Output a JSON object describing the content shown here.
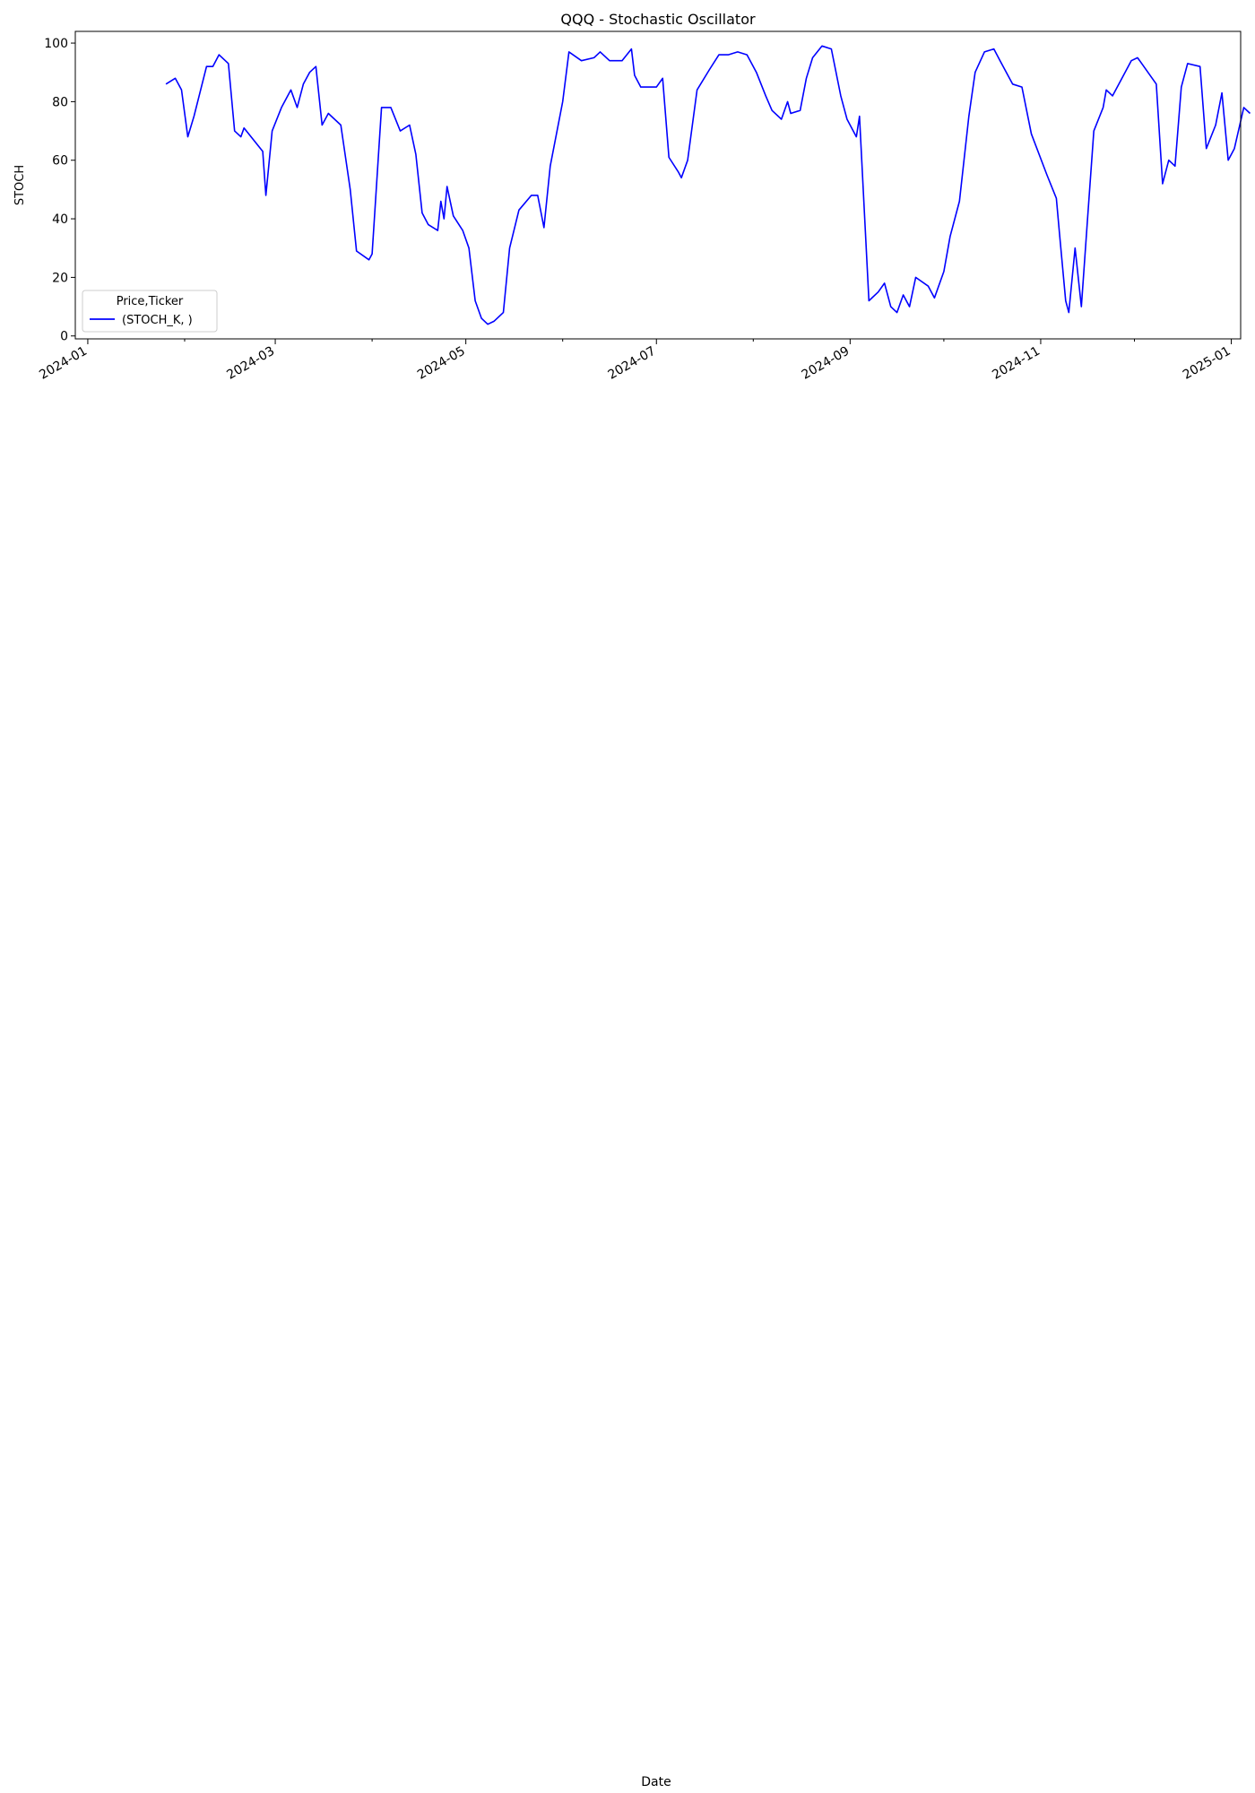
{
  "figure": {
    "xlabel": "Date"
  },
  "x_tick_labels": [
    "2024-01",
    "2024-03",
    "2024-05",
    "2024-07",
    "2024-09",
    "2024-11",
    "2025-01"
  ],
  "colors": {
    "stoch_k": "#0000ff",
    "stoch_d": "#ffa500",
    "cci": "#800080",
    "willr": "#a52a2a",
    "mfi": "#008000",
    "roc": "#008b8b",
    "overbought": "#ff0000",
    "oversold": "#008000"
  },
  "chart_data": [
    {
      "type": "line",
      "title": "QQQ - Stochastic Oscillator",
      "ylabel": "STOCH",
      "ylim": [
        -1,
        104
      ],
      "yticks": [
        0,
        20,
        40,
        60,
        80,
        100
      ],
      "xlim": [
        "2023-12-28",
        "2025-01-04"
      ],
      "legend": {
        "title": "Price,Ticker",
        "placement": "lower-left"
      },
      "series": [
        {
          "name": "(STOCH_K, )",
          "color": "#0000ff",
          "points": [
            [
              "2024-01-26",
              86
            ],
            [
              "2024-01-29",
              88
            ],
            [
              "2024-01-31",
              84
            ],
            [
              "2024-02-02",
              68
            ],
            [
              "2024-02-04",
              75
            ],
            [
              "2024-02-08",
              92
            ],
            [
              "2024-02-10",
              92
            ],
            [
              "2024-02-12",
              96
            ],
            [
              "2024-02-15",
              93
            ],
            [
              "2024-02-17",
              70
            ],
            [
              "2024-02-19",
              68
            ],
            [
              "2024-02-20",
              71
            ],
            [
              "2024-02-26",
              63
            ],
            [
              "2024-02-27",
              48
            ],
            [
              "2024-02-29",
              70
            ],
            [
              "2024-03-03",
              78
            ],
            [
              "2024-03-06",
              84
            ],
            [
              "2024-03-08",
              78
            ],
            [
              "2024-03-10",
              86
            ],
            [
              "2024-03-12",
              90
            ],
            [
              "2024-03-14",
              92
            ],
            [
              "2024-03-16",
              72
            ],
            [
              "2024-03-18",
              76
            ],
            [
              "2024-03-22",
              72
            ],
            [
              "2024-03-25",
              50
            ],
            [
              "2024-03-27",
              29
            ],
            [
              "2024-03-31",
              26
            ],
            [
              "2024-04-01",
              28
            ],
            [
              "2024-04-04",
              78
            ],
            [
              "2024-04-07",
              78
            ],
            [
              "2024-04-10",
              70
            ],
            [
              "2024-04-13",
              72
            ],
            [
              "2024-04-15",
              62
            ],
            [
              "2024-04-17",
              42
            ],
            [
              "2024-04-19",
              38
            ],
            [
              "2024-04-22",
              36
            ],
            [
              "2024-04-23",
              46
            ],
            [
              "2024-04-24",
              40
            ],
            [
              "2024-04-25",
              51
            ],
            [
              "2024-04-27",
              41
            ],
            [
              "2024-04-30",
              36
            ],
            [
              "2024-05-02",
              30
            ],
            [
              "2024-05-04",
              12
            ],
            [
              "2024-05-06",
              6
            ],
            [
              "2024-05-08",
              4
            ],
            [
              "2024-05-10",
              5
            ],
            [
              "2024-05-13",
              8
            ],
            [
              "2024-05-15",
              30
            ],
            [
              "2024-05-18",
              43
            ],
            [
              "2024-05-22",
              48
            ],
            [
              "2024-05-24",
              48
            ],
            [
              "2024-05-26",
              37
            ],
            [
              "2024-05-28",
              58
            ],
            [
              "2024-06-01",
              80
            ],
            [
              "2024-06-03",
              97
            ],
            [
              "2024-06-07",
              94
            ],
            [
              "2024-06-11",
              95
            ],
            [
              "2024-06-13",
              97
            ],
            [
              "2024-06-16",
              94
            ],
            [
              "2024-06-20",
              94
            ],
            [
              "2024-06-23",
              98
            ],
            [
              "2024-06-24",
              89
            ],
            [
              "2024-06-26",
              85
            ],
            [
              "2024-07-01",
              85
            ],
            [
              "2024-07-03",
              88
            ],
            [
              "2024-07-05",
              61
            ],
            [
              "2024-07-08",
              56
            ],
            [
              "2024-07-09",
              54
            ],
            [
              "2024-07-11",
              60
            ],
            [
              "2024-07-14",
              84
            ],
            [
              "2024-07-18",
              91
            ],
            [
              "2024-07-21",
              96
            ],
            [
              "2024-07-24",
              96
            ],
            [
              "2024-07-27",
              97
            ],
            [
              "2024-07-30",
              96
            ],
            [
              "2024-08-02",
              90
            ],
            [
              "2024-08-05",
              82
            ],
            [
              "2024-08-07",
              77
            ],
            [
              "2024-08-10",
              74
            ],
            [
              "2024-08-12",
              80
            ],
            [
              "2024-08-13",
              76
            ],
            [
              "2024-08-16",
              77
            ],
            [
              "2024-08-18",
              88
            ],
            [
              "2024-08-20",
              95
            ],
            [
              "2024-08-23",
              99
            ],
            [
              "2024-08-26",
              98
            ],
            [
              "2024-08-29",
              82
            ],
            [
              "2024-08-31",
              74
            ],
            [
              "2024-09-03",
              68
            ],
            [
              "2024-09-04",
              75
            ],
            [
              "2024-09-07",
              12
            ],
            [
              "2024-09-10",
              15
            ],
            [
              "2024-09-12",
              18
            ],
            [
              "2024-09-14",
              10
            ],
            [
              "2024-09-16",
              8
            ],
            [
              "2024-09-18",
              14
            ],
            [
              "2024-09-20",
              10
            ],
            [
              "2024-09-22",
              20
            ],
            [
              "2024-09-26",
              17
            ],
            [
              "2024-09-28",
              13
            ],
            [
              "2024-10-01",
              22
            ],
            [
              "2024-10-03",
              34
            ],
            [
              "2024-10-06",
              46
            ],
            [
              "2024-10-09",
              75
            ],
            [
              "2024-10-11",
              90
            ],
            [
              "2024-10-14",
              97
            ],
            [
              "2024-10-17",
              98
            ],
            [
              "2024-10-19",
              94
            ],
            [
              "2024-10-23",
              86
            ],
            [
              "2024-10-26",
              85
            ],
            [
              "2024-10-29",
              69
            ],
            [
              "2024-11-03",
              55
            ],
            [
              "2024-11-06",
              47
            ],
            [
              "2024-11-07",
              35
            ],
            [
              "2024-11-09",
              12
            ],
            [
              "2024-11-10",
              8
            ],
            [
              "2024-11-14",
              10
            ],
            [
              "2024-11-16",
              40
            ],
            [
              "2024-11-18",
              70
            ],
            [
              "2024-11-21",
              78
            ],
            [
              "2024-11-22",
              84
            ],
            [
              "2024-11-24",
              82
            ],
            [
              "2024-11-27",
              88
            ],
            [
              "2024-11-30",
              94
            ],
            [
              "2024-12-02",
              95
            ],
            [
              "2024-12-04",
              92
            ],
            [
              "2024-12-08",
              86
            ],
            [
              "2024-12-10",
              52
            ],
            [
              "2024-12-12",
              60
            ],
            [
              "2024-12-14",
              58
            ],
            [
              "2024-12-16",
              85
            ],
            [
              "2024-12-18",
              93
            ],
            [
              "2024-12-22",
              92
            ],
            [
              "2024-12-24",
              64
            ],
            [
              "2024-12-27",
              72
            ],
            [
              "2024-12-29",
              83
            ],
            [
              "2024-12-31",
              60
            ],
            [
              "2025-01-02",
              64
            ],
            [
              "2025-01-05",
              78
            ],
            [
              "2025-01-07",
              76
            ],
            [
              "2024-11-12",
              30
            ]
          ]
        }
      ]
    }
  ]
}
